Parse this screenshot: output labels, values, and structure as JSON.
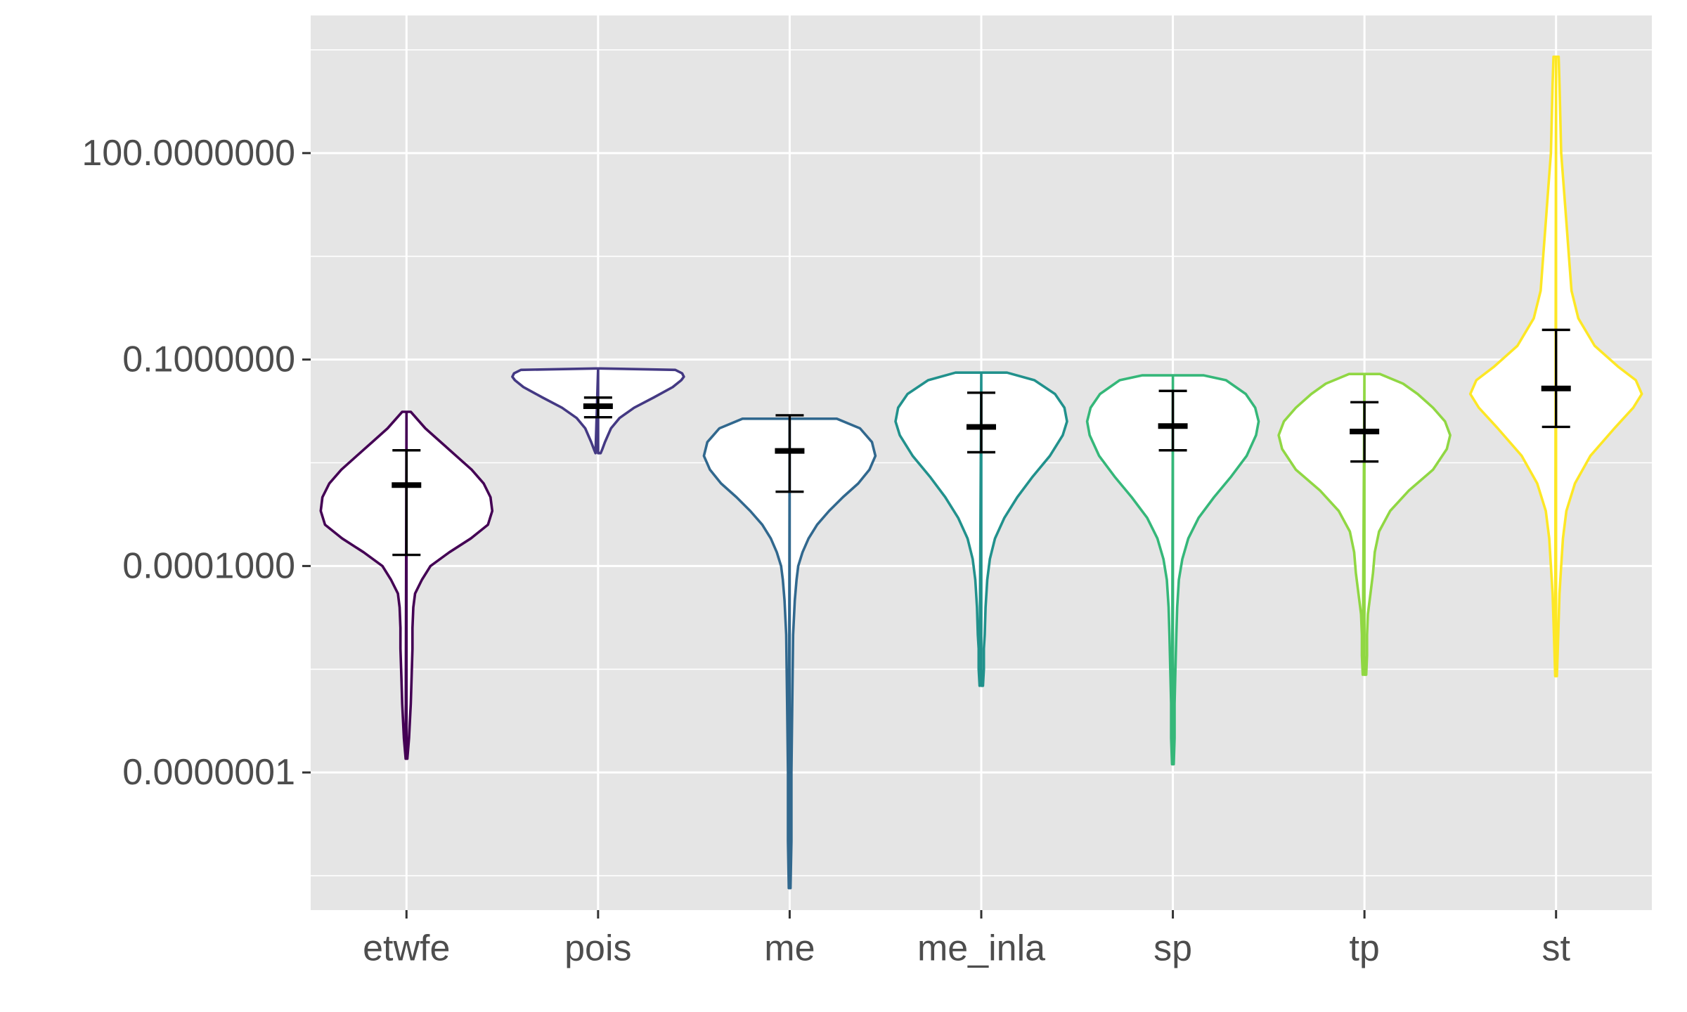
{
  "chart_data": {
    "type": "violin",
    "title": "",
    "xlabel": "",
    "ylabel": "",
    "y_scale": "log10",
    "ylim": [
      1e-09,
      10000
    ],
    "y_ticks": [
      1e-07,
      0.0001,
      0.1,
      100
    ],
    "y_tick_labels": [
      "0.0000001",
      "0.0001000",
      "0.1000000",
      "100.0000000"
    ],
    "grid": true,
    "legend": "none",
    "categories": [
      "etwfe",
      "pois",
      "me",
      "me_inla",
      "sp",
      "tp",
      "st"
    ],
    "colors": [
      "#440154",
      "#443983",
      "#31688e",
      "#21918c",
      "#35b779",
      "#90d743",
      "#fde725"
    ],
    "violins": [
      {
        "name": "etwfe",
        "min": 1.6e-07,
        "max": 0.0174,
        "profile": [
          [
            -6.8,
            0.01
          ],
          [
            -6.5,
            0.03
          ],
          [
            -6.0,
            0.05
          ],
          [
            -5.6,
            0.06
          ],
          [
            -5.2,
            0.07
          ],
          [
            -4.9,
            0.07
          ],
          [
            -4.6,
            0.08
          ],
          [
            -4.4,
            0.1
          ],
          [
            -4.2,
            0.18
          ],
          [
            -4.0,
            0.28
          ],
          [
            -3.8,
            0.5
          ],
          [
            -3.6,
            0.75
          ],
          [
            -3.4,
            0.95
          ],
          [
            -3.2,
            1.0
          ],
          [
            -3.0,
            0.98
          ],
          [
            -2.8,
            0.9
          ],
          [
            -2.6,
            0.76
          ],
          [
            -2.4,
            0.58
          ],
          [
            -2.2,
            0.4
          ],
          [
            -2.0,
            0.22
          ],
          [
            -1.76,
            0.05
          ]
        ]
      },
      {
        "name": "pois",
        "min": 0.0044,
        "max": 0.074,
        "profile": [
          [
            -2.36,
            0.03
          ],
          [
            -2.3,
            0.05
          ],
          [
            -2.2,
            0.08
          ],
          [
            -2.0,
            0.15
          ],
          [
            -1.85,
            0.25
          ],
          [
            -1.7,
            0.42
          ],
          [
            -1.55,
            0.65
          ],
          [
            -1.4,
            0.87
          ],
          [
            -1.3,
            0.97
          ],
          [
            -1.25,
            1.0
          ],
          [
            -1.2,
            0.98
          ],
          [
            -1.15,
            0.9
          ],
          [
            -1.13,
            0.03
          ]
        ]
      },
      {
        "name": "me",
        "min": 2.1e-09,
        "max": 0.0138,
        "profile": [
          [
            -8.68,
            0.01
          ],
          [
            -8.0,
            0.02
          ],
          [
            -7.0,
            0.02
          ],
          [
            -6.0,
            0.03
          ],
          [
            -5.0,
            0.04
          ],
          [
            -4.5,
            0.06
          ],
          [
            -4.2,
            0.08
          ],
          [
            -4.0,
            0.1
          ],
          [
            -3.8,
            0.15
          ],
          [
            -3.6,
            0.22
          ],
          [
            -3.4,
            0.32
          ],
          [
            -3.2,
            0.46
          ],
          [
            -3.0,
            0.62
          ],
          [
            -2.8,
            0.8
          ],
          [
            -2.6,
            0.93
          ],
          [
            -2.4,
            1.0
          ],
          [
            -2.2,
            0.96
          ],
          [
            -2.0,
            0.82
          ],
          [
            -1.86,
            0.55
          ]
        ]
      },
      {
        "name": "me_inla",
        "min": 1.8e-06,
        "max": 0.064,
        "profile": [
          [
            -5.74,
            0.02
          ],
          [
            -5.5,
            0.03
          ],
          [
            -5.2,
            0.03
          ],
          [
            -5.0,
            0.04
          ],
          [
            -4.6,
            0.05
          ],
          [
            -4.2,
            0.07
          ],
          [
            -3.9,
            0.1
          ],
          [
            -3.6,
            0.16
          ],
          [
            -3.3,
            0.27
          ],
          [
            -3.0,
            0.42
          ],
          [
            -2.7,
            0.6
          ],
          [
            -2.4,
            0.8
          ],
          [
            -2.1,
            0.95
          ],
          [
            -1.9,
            1.0
          ],
          [
            -1.7,
            0.97
          ],
          [
            -1.5,
            0.86
          ],
          [
            -1.3,
            0.62
          ],
          [
            -1.19,
            0.3
          ]
        ]
      },
      {
        "name": "sp",
        "min": 1.3e-07,
        "max": 0.059,
        "profile": [
          [
            -6.88,
            0.01
          ],
          [
            -6.5,
            0.02
          ],
          [
            -6.0,
            0.02
          ],
          [
            -5.5,
            0.03
          ],
          [
            -5.0,
            0.04
          ],
          [
            -4.6,
            0.05
          ],
          [
            -4.2,
            0.07
          ],
          [
            -3.9,
            0.11
          ],
          [
            -3.6,
            0.18
          ],
          [
            -3.3,
            0.3
          ],
          [
            -3.0,
            0.48
          ],
          [
            -2.7,
            0.68
          ],
          [
            -2.4,
            0.86
          ],
          [
            -2.1,
            0.97
          ],
          [
            -1.9,
            1.0
          ],
          [
            -1.7,
            0.96
          ],
          [
            -1.5,
            0.85
          ],
          [
            -1.3,
            0.62
          ],
          [
            -1.23,
            0.36
          ]
        ]
      },
      {
        "name": "tp",
        "min": 2.6e-06,
        "max": 0.061,
        "profile": [
          [
            -5.58,
            0.02
          ],
          [
            -5.3,
            0.03
          ],
          [
            -5.0,
            0.03
          ],
          [
            -4.7,
            0.04
          ],
          [
            -4.4,
            0.07
          ],
          [
            -4.1,
            0.1
          ],
          [
            -3.8,
            0.12
          ],
          [
            -3.5,
            0.17
          ],
          [
            -3.2,
            0.3
          ],
          [
            -2.9,
            0.52
          ],
          [
            -2.6,
            0.8
          ],
          [
            -2.3,
            0.96
          ],
          [
            -2.1,
            1.0
          ],
          [
            -1.9,
            0.94
          ],
          [
            -1.7,
            0.8
          ],
          [
            -1.5,
            0.62
          ],
          [
            -1.35,
            0.45
          ],
          [
            -1.21,
            0.18
          ]
        ]
      },
      {
        "name": "st",
        "min": 2.5e-06,
        "max": 2500,
        "profile": [
          [
            -5.6,
            0.01
          ],
          [
            -5.2,
            0.02
          ],
          [
            -4.8,
            0.03
          ],
          [
            -4.4,
            0.04
          ],
          [
            -4.0,
            0.06
          ],
          [
            -3.6,
            0.08
          ],
          [
            -3.2,
            0.12
          ],
          [
            -2.8,
            0.22
          ],
          [
            -2.4,
            0.4
          ],
          [
            -2.0,
            0.68
          ],
          [
            -1.7,
            0.9
          ],
          [
            -1.5,
            1.0
          ],
          [
            -1.3,
            0.93
          ],
          [
            -1.1,
            0.72
          ],
          [
            -0.8,
            0.45
          ],
          [
            -0.4,
            0.26
          ],
          [
            0.0,
            0.18
          ],
          [
            0.5,
            0.15
          ],
          [
            1.0,
            0.12
          ],
          [
            1.5,
            0.09
          ],
          [
            2.0,
            0.06
          ],
          [
            2.5,
            0.05
          ],
          [
            3.0,
            0.04
          ],
          [
            3.4,
            0.03
          ]
        ]
      }
    ],
    "summary": [
      {
        "name": "etwfe",
        "mean": 0.0015,
        "lower": 0.000145,
        "upper": 0.0048
      },
      {
        "name": "pois",
        "mean": 0.021,
        "lower": 0.0145,
        "upper": 0.028
      },
      {
        "name": "me",
        "mean": 0.0047,
        "lower": 0.0012,
        "upper": 0.0155
      },
      {
        "name": "me_inla",
        "mean": 0.0105,
        "lower": 0.0045,
        "upper": 0.033
      },
      {
        "name": "sp",
        "mean": 0.0108,
        "lower": 0.0048,
        "upper": 0.035
      },
      {
        "name": "tp",
        "mean": 0.009,
        "lower": 0.0033,
        "upper": 0.024
      },
      {
        "name": "st",
        "mean": 0.038,
        "lower": 0.0105,
        "upper": 0.27
      }
    ]
  }
}
